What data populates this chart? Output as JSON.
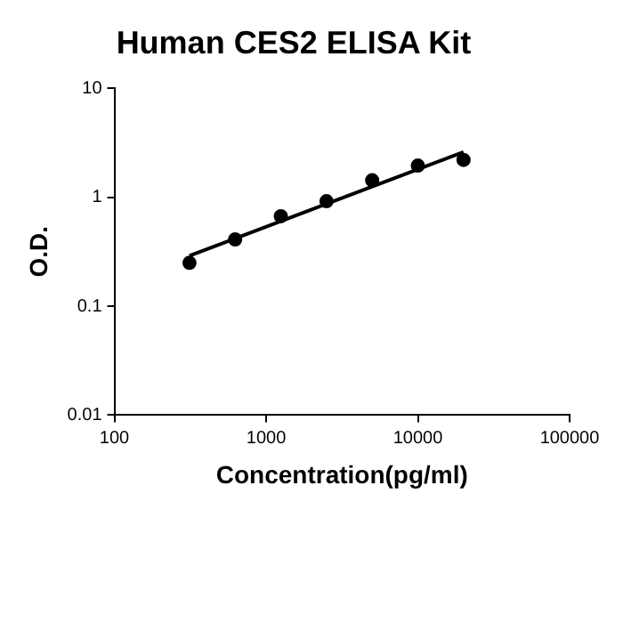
{
  "chart_data": {
    "type": "scatter",
    "title": "Human CES2 ELISA Kit",
    "xlabel": "Concentration(pg/ml)",
    "ylabel": "O.D.",
    "log": "xy",
    "grid": false,
    "legend": false,
    "marker": "circle",
    "xlim": [
      100,
      100000
    ],
    "xticks": [
      100,
      1000,
      10000,
      100000
    ],
    "ylim": [
      0.01,
      10
    ],
    "yticks": [
      0.01,
      0.1,
      1,
      10
    ],
    "x": [
      312.5,
      625,
      1250,
      2500,
      5000,
      10000,
      20000
    ],
    "series": [
      {
        "type": "scatter",
        "color": "#000000",
        "values": [
          0.25,
          0.41,
          0.67,
          0.92,
          1.43,
          1.95,
          2.2
        ]
      },
      {
        "type": "line",
        "color": "#000000",
        "marker": "none",
        "line_style": "solid",
        "x": [
          312.5,
          20000
        ],
        "values": [
          0.29,
          2.6
        ]
      }
    ]
  }
}
